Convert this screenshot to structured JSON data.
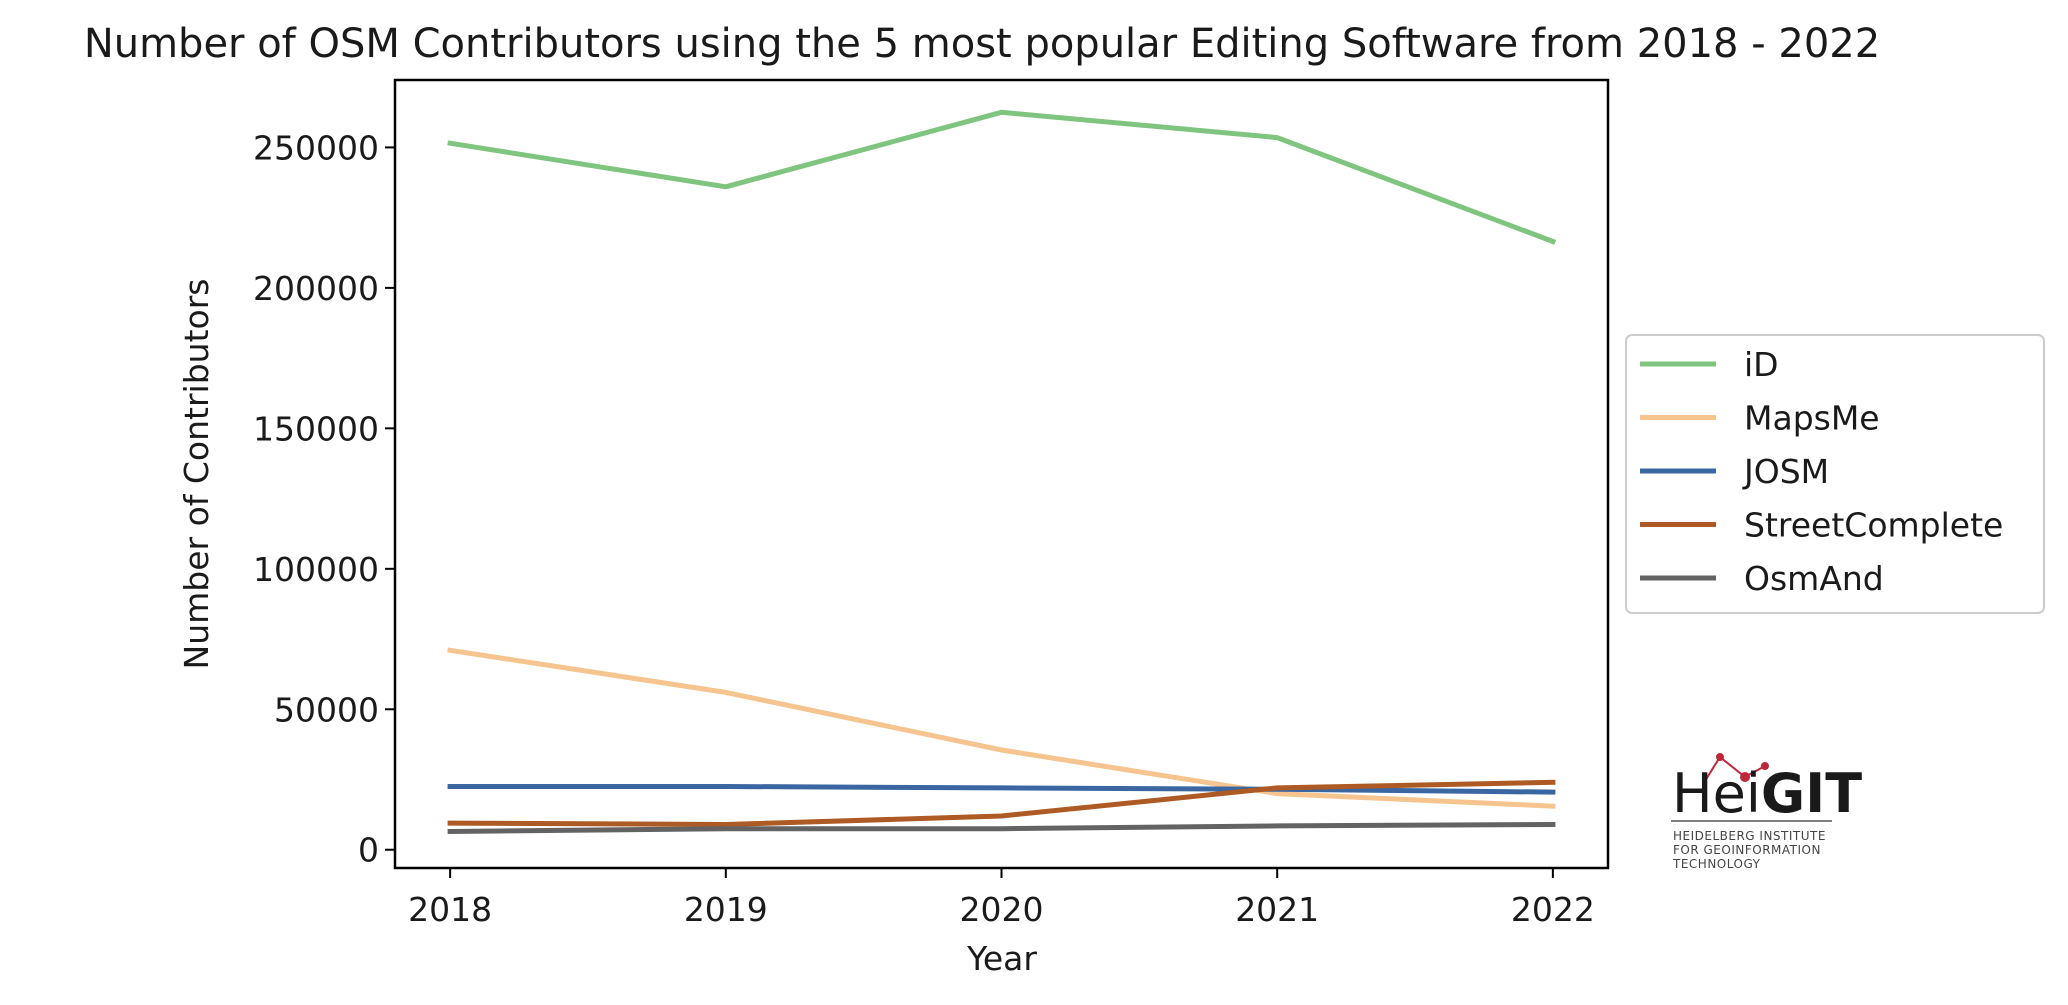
{
  "chart_data": {
    "type": "line",
    "title": "Number of OSM Contributors using the 5 most popular Editing Software from 2018 - 2022",
    "xlabel": "Year",
    "ylabel": "Number of Contributors",
    "x": [
      2018,
      2019,
      2020,
      2021,
      2022
    ],
    "x_tick_labels": [
      "2018",
      "2019",
      "2020",
      "2021",
      "2022"
    ],
    "y_ticks": [
      0,
      50000,
      100000,
      150000,
      200000,
      250000
    ],
    "y_tick_labels": [
      "0",
      "50000",
      "100000",
      "150000",
      "200000",
      "250000"
    ],
    "ylim": [
      -6500,
      274000
    ],
    "xlim": [
      2017.8,
      2022.2
    ],
    "grid": false,
    "legend_position": "right, outside plot",
    "series": [
      {
        "name": "iD",
        "color": "#7fc47f",
        "values": [
          251500,
          236000,
          262500,
          253500,
          216500
        ]
      },
      {
        "name": "MapsMe",
        "color": "#f5c48f",
        "values": [
          71000,
          56000,
          35500,
          20000,
          15500
        ]
      },
      {
        "name": "JOSM",
        "color": "#3a67a2",
        "values": [
          22500,
          22500,
          22000,
          21500,
          20500
        ]
      },
      {
        "name": "StreetComplete",
        "color": "#ae5a24",
        "values": [
          9500,
          9000,
          12000,
          22000,
          24000
        ]
      },
      {
        "name": "OsmAnd",
        "color": "#636363",
        "values": [
          6500,
          7500,
          7500,
          8500,
          9000
        ]
      }
    ]
  },
  "logo": {
    "name": "HeiGIT",
    "name_part1": "Hei",
    "name_part2": "GIT",
    "subtitle_lines": [
      "HEIDELBERG INSTITUTE",
      "FOR GEOINFORMATION",
      "TECHNOLOGY"
    ],
    "accent_color": "#c0263a"
  }
}
